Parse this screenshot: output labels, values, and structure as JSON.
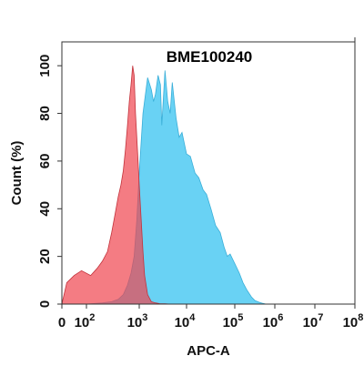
{
  "chart_data": {
    "type": "area",
    "title": "BME100240",
    "xlabel": "APC-A",
    "ylabel": "Count  (%)",
    "x_scale": "biexponential",
    "xlim": [
      0,
      100000000
    ],
    "ylim": [
      0,
      110
    ],
    "y_ticks": [
      {
        "value": 0,
        "label": "0"
      },
      {
        "value": 20,
        "label": "20"
      },
      {
        "value": 40,
        "label": "40"
      },
      {
        "value": 60,
        "label": "60"
      },
      {
        "value": 80,
        "label": "80"
      },
      {
        "value": 100,
        "label": "100"
      }
    ],
    "x_ticks": [
      {
        "value": 0,
        "base": "0",
        "exp": ""
      },
      {
        "value": 100,
        "base": "10",
        "exp": "2"
      },
      {
        "value": 1000,
        "base": "10",
        "exp": "3"
      },
      {
        "value": 10000,
        "base": "10",
        "exp": "4"
      },
      {
        "value": 100000,
        "base": "10",
        "exp": "5"
      },
      {
        "value": 1000000,
        "base": "10",
        "exp": "6"
      },
      {
        "value": 10000000,
        "base": "10",
        "exp": "7"
      },
      {
        "value": 100000000,
        "base": "10",
        "exp": "8"
      }
    ],
    "grid": false,
    "legend": "none",
    "series": [
      {
        "color": "#f0454f",
        "x": [
          0,
          20,
          50,
          80,
          120,
          160,
          200,
          250,
          300,
          350,
          400,
          450,
          500,
          550,
          600,
          650,
          700,
          750,
          800,
          850,
          900,
          950,
          1000,
          1100,
          1200,
          1300,
          1500,
          1800,
          2200,
          2700,
          3500,
          4500
        ],
        "y": [
          0,
          9,
          12,
          14,
          12,
          15,
          18,
          22,
          30,
          38,
          45,
          50,
          56,
          65,
          75,
          85,
          92,
          100,
          96,
          80,
          70,
          60,
          50,
          35,
          22,
          12,
          4,
          1,
          0.5,
          0.2,
          0.1,
          0
        ]
      },
      {
        "color": "#59cdf3",
        "x": [
          100,
          200,
          300,
          400,
          500,
          600,
          700,
          800,
          900,
          1000,
          1200,
          1500,
          1800,
          2000,
          2200,
          2500,
          2800,
          3000,
          3500,
          4000,
          4500,
          5000,
          6000,
          7000,
          8000,
          10000,
          12000,
          15000,
          18000,
          22000,
          26000,
          32000,
          40000,
          50000,
          60000,
          70000,
          80000,
          100000,
          130000,
          160000,
          200000,
          260000,
          320000,
          400000,
          500000,
          600000
        ],
        "y": [
          0,
          0.5,
          1,
          2,
          4,
          8,
          13,
          20,
          35,
          55,
          80,
          95,
          90,
          85,
          88,
          96,
          92,
          75,
          98,
          85,
          80,
          93,
          78,
          70,
          72,
          63,
          62,
          55,
          53,
          48,
          46,
          40,
          33,
          30,
          24,
          20,
          21,
          17,
          13,
          9,
          6,
          3,
          1.5,
          0.8,
          0.3,
          0
        ]
      }
    ]
  }
}
